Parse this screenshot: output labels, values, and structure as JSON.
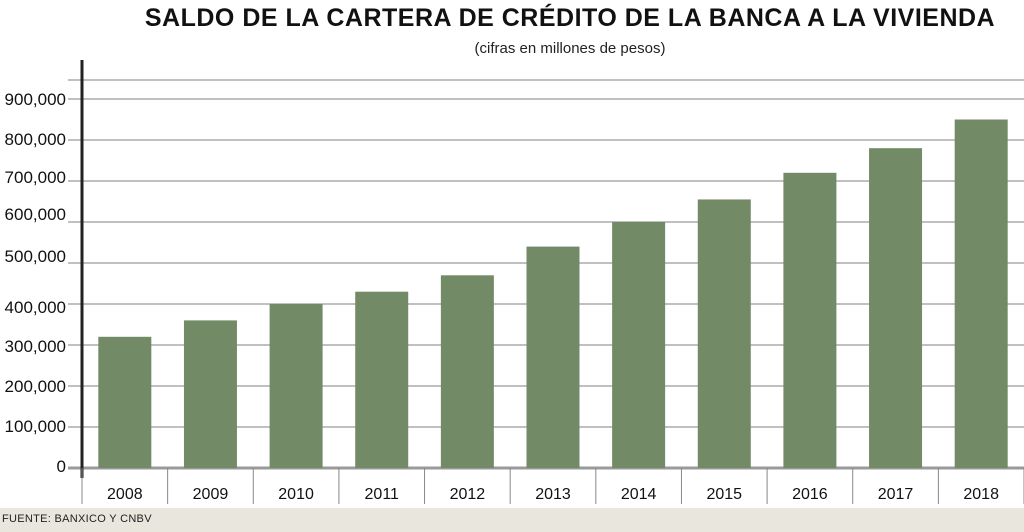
{
  "chart_data": {
    "type": "bar",
    "title": "SALDO DE LA CARTERA DE CRÉDITO DE LA BANCA A LA VIVIENDA",
    "subtitle": "(cifras en millones de pesos)",
    "categories": [
      "2008",
      "2009",
      "2010",
      "2011",
      "2012",
      "2013",
      "2014",
      "2015",
      "2016",
      "2017",
      "2018"
    ],
    "values": [
      320000,
      360000,
      400000,
      430000,
      470000,
      540000,
      600000,
      655000,
      720000,
      780000,
      850000
    ],
    "yticks": [
      "0",
      "100,000",
      "200,000",
      "300,000",
      "400,000",
      "500,000",
      "600,000",
      "700,000",
      "800,000",
      "900,000"
    ],
    "ylim": [
      0,
      950000
    ],
    "grid": true,
    "bar_color": "#738a66",
    "source": "FUENTE: BANXICO Y CNBV"
  }
}
